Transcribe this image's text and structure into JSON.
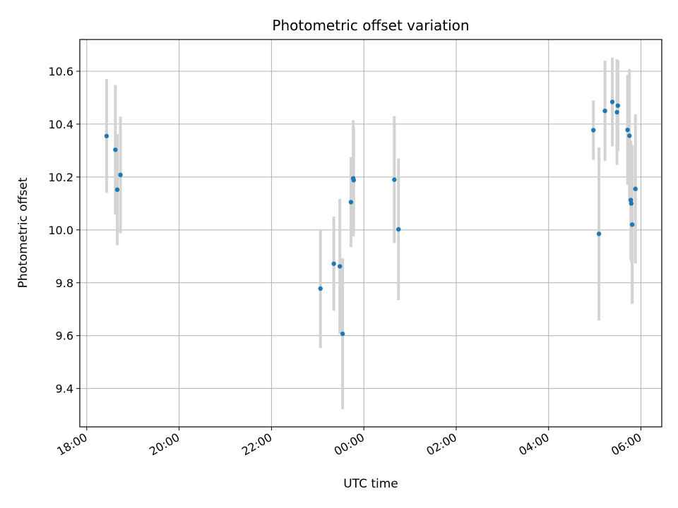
{
  "chart_data": {
    "type": "scatter",
    "title": "Photometric offset variation",
    "xlabel": "UTC time",
    "ylabel": "Photometric offset",
    "x_unit": "hours after 18:00 UTC",
    "xlim": [
      -0.15,
      12.45
    ],
    "ylim": [
      9.255,
      10.72
    ],
    "x_ticks": [
      {
        "value": 0,
        "label": "18:00"
      },
      {
        "value": 2,
        "label": "20:00"
      },
      {
        "value": 4,
        "label": "22:00"
      },
      {
        "value": 6,
        "label": "00:00"
      },
      {
        "value": 8,
        "label": "02:00"
      },
      {
        "value": 10,
        "label": "04:00"
      },
      {
        "value": 12,
        "label": "06:00"
      }
    ],
    "y_ticks": [
      {
        "value": 9.4,
        "label": "9.4"
      },
      {
        "value": 9.6,
        "label": "9.6"
      },
      {
        "value": 9.8,
        "label": "9.8"
      },
      {
        "value": 10.0,
        "label": "10.0"
      },
      {
        "value": 10.2,
        "label": "10.2"
      },
      {
        "value": 10.4,
        "label": "10.4"
      },
      {
        "value": 10.6,
        "label": "10.6"
      }
    ],
    "grid": true,
    "marker_color": "#1f77b4",
    "errorbar_color": "#d3d3d3",
    "points": [
      {
        "x": 0.43,
        "y": 10.355,
        "err": 0.215
      },
      {
        "x": 0.62,
        "y": 10.303,
        "err": 0.245
      },
      {
        "x": 0.66,
        "y": 10.152,
        "err": 0.21
      },
      {
        "x": 0.73,
        "y": 10.208,
        "err": 0.22
      },
      {
        "x": 5.06,
        "y": 9.778,
        "err": 0.225
      },
      {
        "x": 5.35,
        "y": 9.872,
        "err": 0.178
      },
      {
        "x": 5.48,
        "y": 9.862,
        "err": 0.255
      },
      {
        "x": 5.54,
        "y": 9.607,
        "err": 0.285
      },
      {
        "x": 5.72,
        "y": 10.105,
        "err": 0.17
      },
      {
        "x": 5.77,
        "y": 10.195,
        "err": 0.22
      },
      {
        "x": 5.78,
        "y": 10.188,
        "err": 0.2
      },
      {
        "x": 6.66,
        "y": 10.19,
        "err": 0.24
      },
      {
        "x": 6.75,
        "y": 10.002,
        "err": 0.268
      },
      {
        "x": 10.97,
        "y": 10.377,
        "err": 0.112
      },
      {
        "x": 11.09,
        "y": 9.985,
        "err": 0.327
      },
      {
        "x": 11.22,
        "y": 10.45,
        "err": 0.19
      },
      {
        "x": 11.38,
        "y": 10.484,
        "err": 0.168
      },
      {
        "x": 11.48,
        "y": 10.445,
        "err": 0.2
      },
      {
        "x": 11.5,
        "y": 10.47,
        "err": 0.172
      },
      {
        "x": 11.71,
        "y": 10.378,
        "err": 0.208
      },
      {
        "x": 11.75,
        "y": 10.356,
        "err": 0.252
      },
      {
        "x": 11.78,
        "y": 10.113,
        "err": 0.225
      },
      {
        "x": 11.79,
        "y": 10.1,
        "err": 0.222
      },
      {
        "x": 11.81,
        "y": 10.02,
        "err": 0.3
      },
      {
        "x": 11.88,
        "y": 10.155,
        "err": 0.282
      }
    ]
  }
}
